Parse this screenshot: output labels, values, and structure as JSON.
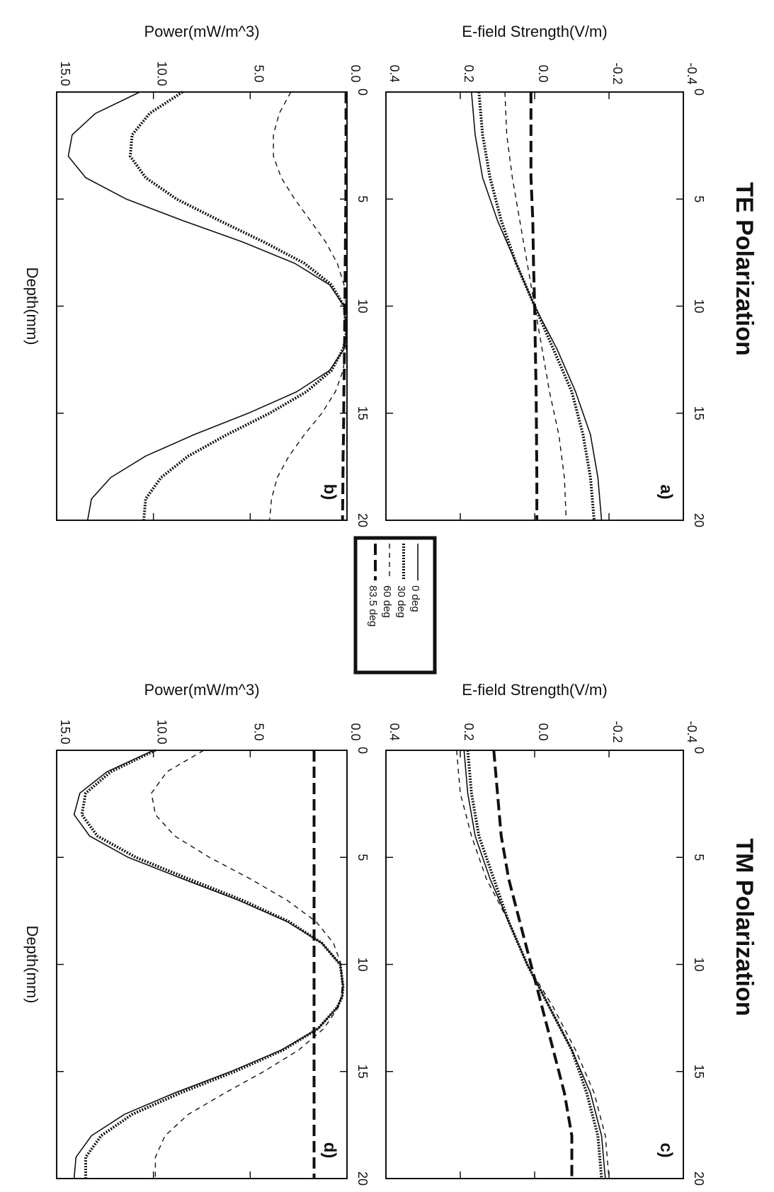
{
  "titles": {
    "te": "TE Polarization",
    "tm": "TM Polarization"
  },
  "legend": [
    {
      "label": "0 deg",
      "style": "solid"
    },
    {
      "label": "30 deg",
      "style": "dotted-thick"
    },
    {
      "label": "60 deg",
      "style": "dashed"
    },
    {
      "label": "83.5 deg",
      "style": "long-dash"
    }
  ],
  "chart_data": [
    {
      "type": "line",
      "panel": "a)",
      "section": "TE Polarization",
      "xlabel": "Depth(mm)",
      "ylabel": "E-field Strength(V/m)",
      "xlim": [
        0,
        20
      ],
      "ylim": [
        -0.4,
        0.4
      ],
      "xticks": [
        "0",
        "5",
        "10",
        "15",
        "20"
      ],
      "yticks": [
        "-0.4",
        "-0.2",
        "0.0",
        "0.2",
        "0.4"
      ],
      "x": [
        0,
        2,
        4,
        6,
        8,
        10,
        12,
        14,
        16,
        18,
        20
      ],
      "series": [
        {
          "name": "0 deg",
          "values": [
            0.17,
            0.16,
            0.14,
            0.1,
            0.05,
            0.0,
            -0.06,
            -0.11,
            -0.15,
            -0.17,
            -0.18
          ]
        },
        {
          "name": "30 deg",
          "values": [
            0.15,
            0.14,
            0.12,
            0.09,
            0.05,
            0.0,
            -0.05,
            -0.1,
            -0.13,
            -0.15,
            -0.16
          ]
        },
        {
          "name": "60 deg",
          "values": [
            0.08,
            0.075,
            0.06,
            0.04,
            0.02,
            0.0,
            -0.02,
            -0.04,
            -0.065,
            -0.08,
            -0.085
          ]
        },
        {
          "name": "83.5 deg",
          "values": [
            0.01,
            0.01,
            0.01,
            0.005,
            0.003,
            0.0,
            -0.002,
            -0.004,
            -0.005,
            -0.006,
            -0.006
          ]
        }
      ]
    },
    {
      "type": "line",
      "panel": "b)",
      "section": "TE Polarization",
      "xlabel": "Depth(mm)",
      "ylabel": "Power(mW/m^3)",
      "xlim": [
        0,
        20
      ],
      "ylim": [
        0,
        15
      ],
      "xticks": [
        "0",
        "5",
        "10",
        "15",
        "20"
      ],
      "yticks": [
        "0.0",
        "5.0",
        "10.0",
        "15.0"
      ],
      "x": [
        0,
        1,
        2,
        3,
        4,
        5,
        6,
        7,
        8,
        9,
        10,
        11,
        11.5,
        12,
        13,
        14,
        15,
        16,
        17,
        18,
        19,
        20
      ],
      "series": [
        {
          "name": "0 deg",
          "values": [
            10.7,
            13.0,
            14.2,
            14.4,
            13.5,
            11.4,
            8.5,
            5.4,
            2.7,
            0.9,
            0.15,
            0.05,
            0.05,
            0.15,
            0.9,
            2.6,
            5.1,
            7.9,
            10.4,
            12.2,
            13.2,
            13.4
          ]
        },
        {
          "name": "30 deg",
          "values": [
            8.5,
            10.2,
            11.1,
            11.2,
            10.4,
            8.8,
            6.6,
            4.3,
            2.2,
            0.8,
            0.15,
            0.05,
            0.05,
            0.2,
            0.8,
            2.1,
            4.0,
            6.2,
            8.2,
            9.6,
            10.4,
            10.5
          ]
        },
        {
          "name": "60 deg",
          "values": [
            2.9,
            3.5,
            3.8,
            3.8,
            3.4,
            2.7,
            1.9,
            1.1,
            0.5,
            0.15,
            0.05,
            0.02,
            0.02,
            0.05,
            0.2,
            0.6,
            1.3,
            2.2,
            3.0,
            3.6,
            3.9,
            4.0
          ]
        },
        {
          "name": "83.5 deg",
          "values": [
            0.05,
            0.05,
            0.05,
            0.05,
            0.06,
            0.06,
            0.07,
            0.08,
            0.09,
            0.1,
            0.11,
            0.12,
            0.12,
            0.13,
            0.14,
            0.16,
            0.17,
            0.18,
            0.2,
            0.21,
            0.22,
            0.23
          ]
        }
      ]
    },
    {
      "type": "line",
      "panel": "c)",
      "section": "TM Polarization",
      "xlabel": "Depth(mm)",
      "ylabel": "E-field Strength(V/m)",
      "xlim": [
        0,
        20
      ],
      "ylim": [
        -0.4,
        0.4
      ],
      "xticks": [
        "0",
        "5",
        "10",
        "15",
        "20"
      ],
      "yticks": [
        "-0.4",
        "-0.2",
        "0.0",
        "0.2",
        "0.4"
      ],
      "x": [
        0,
        2,
        4,
        6,
        8,
        10,
        12,
        14,
        16,
        18,
        20
      ],
      "series": [
        {
          "name": "0 deg",
          "values": [
            0.19,
            0.18,
            0.16,
            0.12,
            0.07,
            0.02,
            -0.04,
            -0.1,
            -0.15,
            -0.18,
            -0.19
          ]
        },
        {
          "name": "30 deg",
          "values": [
            0.18,
            0.17,
            0.15,
            0.11,
            0.07,
            0.02,
            -0.04,
            -0.1,
            -0.14,
            -0.17,
            -0.18
          ]
        },
        {
          "name": "60 deg",
          "values": [
            0.21,
            0.2,
            0.17,
            0.13,
            0.07,
            0.02,
            -0.05,
            -0.11,
            -0.16,
            -0.19,
            -0.2
          ]
        },
        {
          "name": "83.5 deg",
          "values": [
            0.11,
            0.1,
            0.09,
            0.07,
            0.04,
            0.01,
            -0.02,
            -0.05,
            -0.08,
            -0.1,
            -0.1
          ]
        }
      ]
    },
    {
      "type": "line",
      "panel": "d)",
      "section": "TM Polarization",
      "xlabel": "Depth(mm)",
      "ylabel": "Power(mW/m^3)",
      "xlim": [
        0,
        20
      ],
      "ylim": [
        0,
        15
      ],
      "xticks": [
        "0",
        "5",
        "10",
        "15",
        "20"
      ],
      "yticks": [
        "0.0",
        "5.0",
        "10.0",
        "15.0"
      ],
      "x": [
        0,
        1,
        2,
        3,
        4,
        5,
        6,
        7,
        8,
        9,
        10,
        11,
        11.5,
        12,
        13,
        14,
        15,
        16,
        17,
        18,
        19,
        20
      ],
      "series": [
        {
          "name": "0 deg",
          "values": [
            10.0,
            12.4,
            13.8,
            14.1,
            13.3,
            11.3,
            8.5,
            5.6,
            3.1,
            1.3,
            0.35,
            0.2,
            0.25,
            0.5,
            1.5,
            3.4,
            6.0,
            8.9,
            11.5,
            13.2,
            14.0,
            14.1
          ]
        },
        {
          "name": "30 deg",
          "values": [
            9.9,
            12.2,
            13.5,
            13.7,
            12.9,
            10.9,
            8.2,
            5.4,
            3.0,
            1.3,
            0.35,
            0.2,
            0.25,
            0.5,
            1.5,
            3.3,
            5.8,
            8.6,
            11.1,
            12.7,
            13.5,
            13.5
          ]
        },
        {
          "name": "60 deg",
          "values": [
            7.4,
            9.3,
            10.1,
            9.9,
            8.9,
            7.1,
            5.0,
            3.1,
            1.6,
            0.7,
            0.3,
            0.25,
            0.3,
            0.45,
            1.2,
            2.5,
            4.3,
            6.3,
            8.2,
            9.4,
            9.9,
            9.9
          ]
        },
        {
          "name": "83.5 deg",
          "values": [
            1.7,
            1.7,
            1.7,
            1.7,
            1.7,
            1.7,
            1.7,
            1.7,
            1.7,
            1.7,
            1.7,
            1.7,
            1.7,
            1.7,
            1.7,
            1.7,
            1.7,
            1.7,
            1.7,
            1.7,
            1.7,
            1.7
          ]
        }
      ]
    }
  ]
}
